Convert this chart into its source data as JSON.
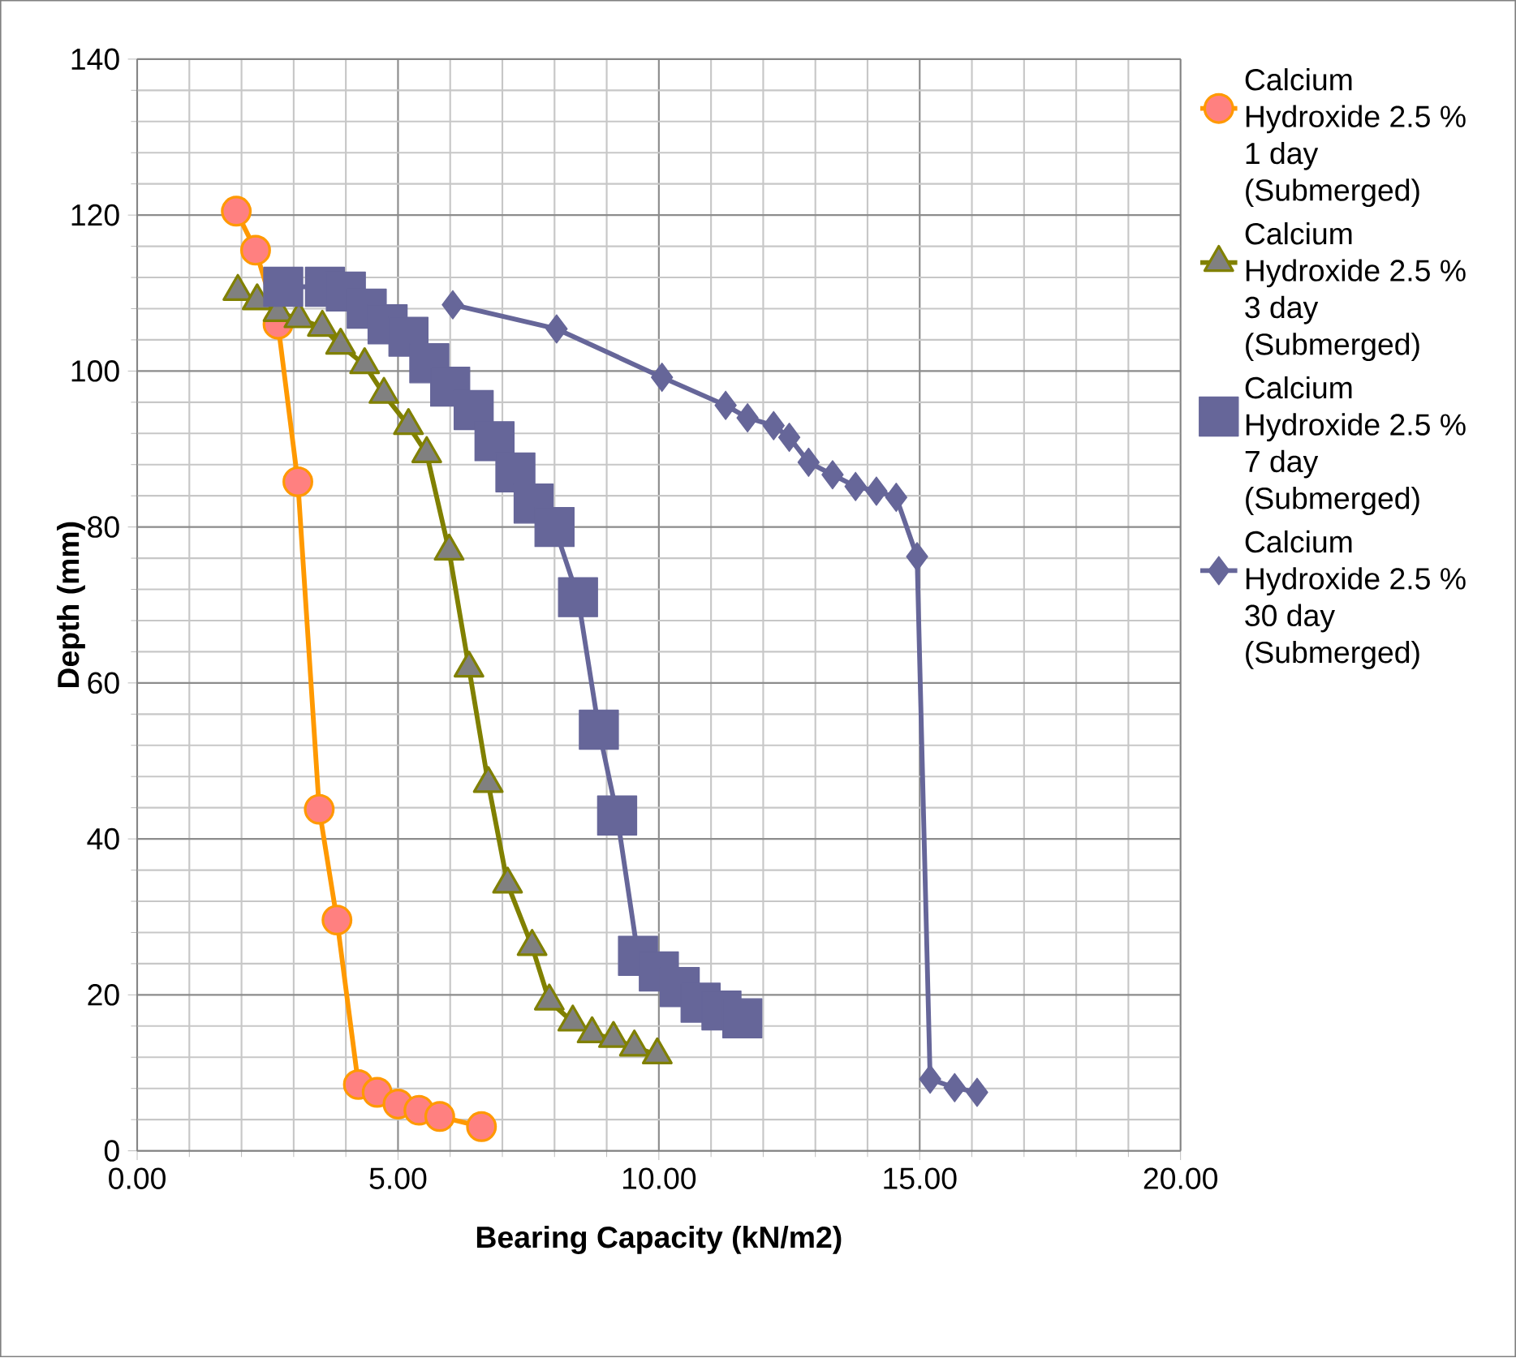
{
  "chart_data": {
    "type": "line",
    "xlabel": "Bearing Capacity (kN/m2)",
    "ylabel": "Depth (mm)",
    "xlim": [
      0,
      20
    ],
    "ylim": [
      0,
      140
    ],
    "xticks": [
      {
        "value": 0,
        "label": "0.00"
      },
      {
        "value": 5,
        "label": "5.00"
      },
      {
        "value": 10,
        "label": "10.00"
      },
      {
        "value": 15,
        "label": "15.00"
      },
      {
        "value": 20,
        "label": "20.00"
      }
    ],
    "yticks": [
      0,
      20,
      40,
      60,
      80,
      100,
      120,
      140
    ],
    "grid": true,
    "legend": "right",
    "series": [
      {
        "name": "Calcium Hydroxide 2.5 % 1 day (Submerged)",
        "color": "#ff9900",
        "marker": "circle",
        "x": [
          1.9,
          2.27,
          2.7,
          3.08,
          3.49,
          3.83,
          4.24,
          4.6,
          5.0,
          5.4,
          5.8,
          6.6
        ],
        "values": [
          120.5,
          115.5,
          106,
          85.8,
          43.8,
          29.6,
          8.5,
          7.5,
          6.0,
          5.2,
          4.4,
          3.1
        ]
      },
      {
        "name": "Calcium Hydroxide 2.5 % 3 day (Submerged)",
        "color": "#808000",
        "marker": "triangle",
        "x": [
          1.93,
          2.3,
          2.7,
          3.1,
          3.55,
          3.9,
          4.36,
          4.73,
          5.2,
          5.55,
          5.98,
          6.36,
          6.73,
          7.1,
          7.57,
          7.9,
          8.35,
          8.72,
          9.13,
          9.53,
          9.97
        ],
        "values": [
          110.2,
          109,
          107.5,
          106.7,
          105.6,
          103.3,
          100.8,
          97,
          93,
          89.4,
          76.9,
          61.9,
          47.1,
          34.2,
          26.2,
          19.2,
          16.5,
          15,
          14.4,
          13.3,
          12.3
        ]
      },
      {
        "name": "Calcium Hydroxide 2.5 % 7 day (Submerged)",
        "color": "#666699",
        "marker": "square",
        "x": [
          2.8,
          3.6,
          4.0,
          4.4,
          4.8,
          5.2,
          5.6,
          6.0,
          6.45,
          6.85,
          7.25,
          7.6,
          8.0,
          8.45,
          8.85,
          9.2,
          9.6,
          10.0,
          10.4,
          10.8,
          11.2,
          11.6
        ],
        "values": [
          110.8,
          110.8,
          110.2,
          108,
          106,
          104.4,
          101,
          98,
          95,
          91,
          87,
          83,
          80,
          71,
          54,
          43,
          25,
          23,
          21,
          19,
          18,
          17
        ]
      },
      {
        "name": "Calcium Hydroxide 2.5 % 30 day (Submerged)",
        "color": "#666699",
        "marker": "diamond",
        "x": [
          6.05,
          8.04,
          10.06,
          11.28,
          11.7,
          12.2,
          12.5,
          12.87,
          13.33,
          13.77,
          14.17,
          14.55,
          14.95,
          15.2,
          15.67,
          16.1
        ],
        "values": [
          108.5,
          105.4,
          99.2,
          95.6,
          94,
          93,
          91.5,
          88.3,
          86.7,
          85.2,
          84.6,
          83.8,
          76.2,
          9.2,
          8.1,
          7.5
        ]
      }
    ]
  }
}
